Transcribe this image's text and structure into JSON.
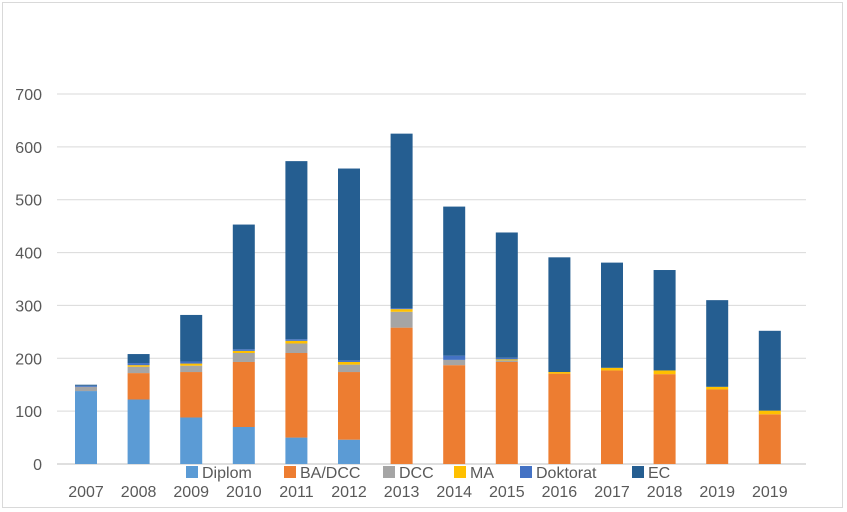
{
  "chart_data": {
    "type": "bar",
    "stacked": true,
    "categories": [
      "2007",
      "2008",
      "2009",
      "2010",
      "2011",
      "2012",
      "2013",
      "2014",
      "2015",
      "2016",
      "2017",
      "2018",
      "2019",
      "2019"
    ],
    "ylim": [
      0,
      700
    ],
    "yticks": [
      "0",
      "100",
      "200",
      "300",
      "400",
      "500",
      "600",
      "700"
    ],
    "grid": true,
    "legend": "bottom",
    "series": [
      {
        "name": "Diplom",
        "color": "#5b9bd5",
        "values": [
          138,
          122,
          88,
          70,
          50,
          46,
          0,
          0,
          0,
          0,
          0,
          0,
          0,
          0
        ]
      },
      {
        "name": "BA/DCC",
        "color": "#ed7d31",
        "values": [
          0,
          50,
          86,
          123,
          160,
          128,
          258,
          187,
          193,
          171,
          177,
          170,
          141,
          94
        ]
      },
      {
        "name": "DCC",
        "color": "#a5a5a5",
        "values": [
          8,
          12,
          12,
          17,
          18,
          14,
          30,
          10,
          3,
          0,
          0,
          0,
          0,
          0
        ]
      },
      {
        "name": "MA",
        "color": "#ffc000",
        "values": [
          0,
          3,
          4,
          4,
          5,
          5,
          5,
          0,
          2,
          3,
          5,
          7,
          5,
          7
        ]
      },
      {
        "name": "Doktorat",
        "color": "#4472c4",
        "values": [
          2,
          4,
          4,
          3,
          3,
          3,
          2,
          8,
          3,
          0,
          0,
          0,
          0,
          0
        ]
      },
      {
        "name": "EC",
        "color": "#255e91",
        "values": [
          2,
          17,
          88,
          236,
          337,
          363,
          330,
          282,
          237,
          217,
          199,
          190,
          164,
          151
        ]
      }
    ]
  }
}
